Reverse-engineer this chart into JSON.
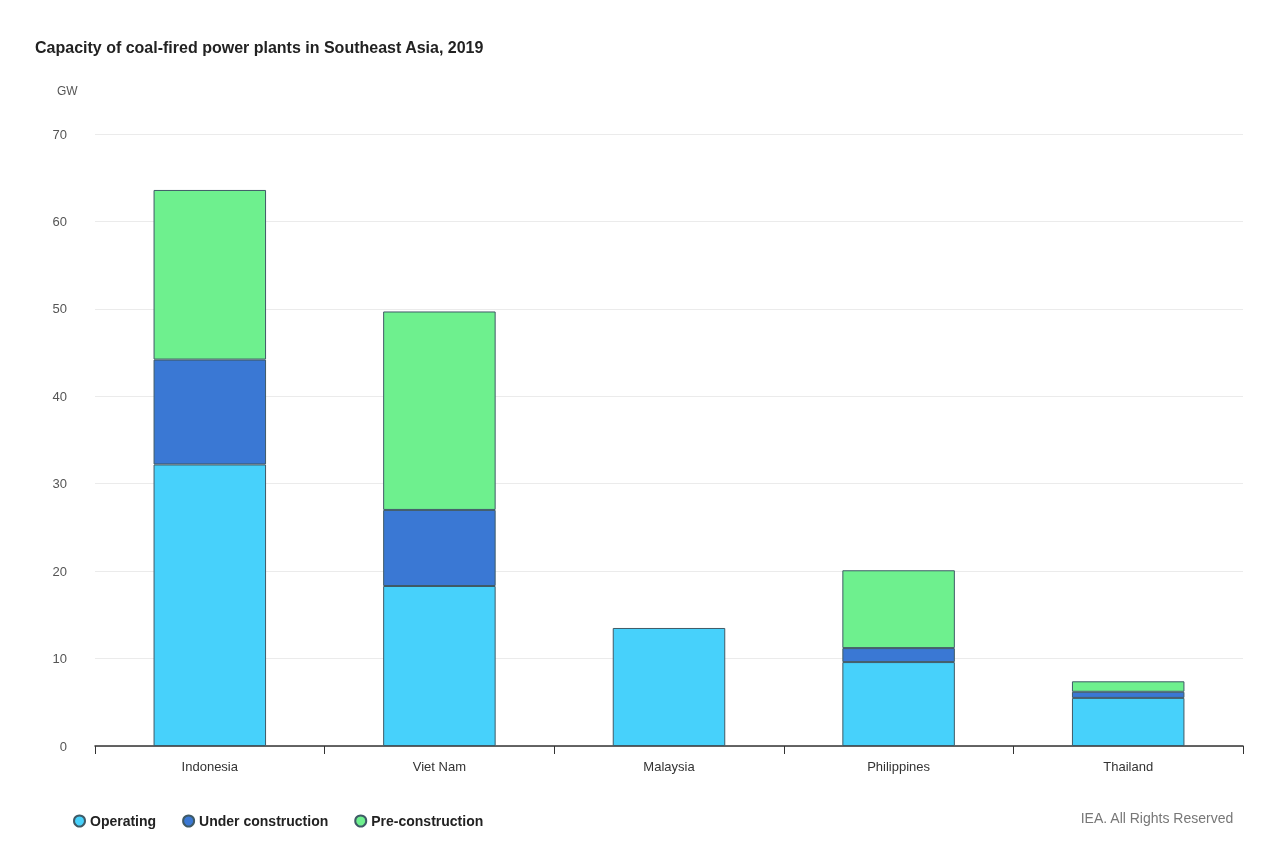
{
  "chart_data": {
    "type": "bar",
    "title": "Capacity of coal-fired power plants in Southeast Asia, 2019",
    "ylabel": "GW",
    "categories": [
      "Indonesia",
      "Viet Nam",
      "Malaysia",
      "Philippines",
      "Thailand"
    ],
    "stacked": true,
    "series": [
      {
        "name": "Operating",
        "color": "#47d1fb",
        "values": [
          32.2,
          18.3,
          13.5,
          9.6,
          5.5
        ]
      },
      {
        "name": "Under construction",
        "color": "#3a78d4",
        "values": [
          12.0,
          8.7,
          null,
          1.6,
          0.7
        ]
      },
      {
        "name": "Pre-construction",
        "color": "#6ef08e",
        "values": [
          19.4,
          22.7,
          null,
          8.9,
          1.2
        ]
      }
    ],
    "ylim": [
      0,
      70
    ],
    "yticks": [
      0,
      10,
      20,
      30,
      40,
      50,
      60,
      70
    ],
    "grid": "y",
    "legend": "bottom left",
    "annotations": [
      "IEA. All Rights Reserved"
    ]
  }
}
